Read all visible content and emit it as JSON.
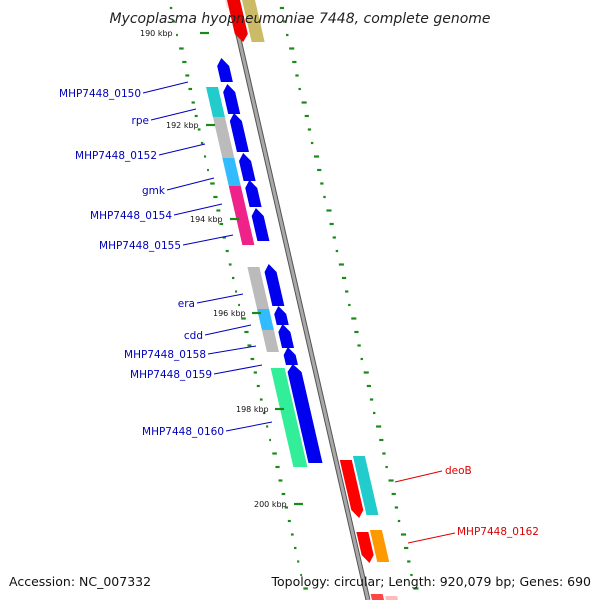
{
  "title": "Mycoplasma hyopneumoniae 7448, complete genome",
  "footer": {
    "accession": "Accession: NC_007332",
    "summary": "Topology: circular; Length: 920,079 bp; Genes: 690"
  },
  "kbp_labels": [
    "190 kbp",
    "192 kbp",
    "194 kbp",
    "196 kbp",
    "198 kbp",
    "200 kbp"
  ],
  "gene_labels_left": [
    "MHP7448_0150",
    "rpe",
    "MHP7448_0152",
    "gmk",
    "MHP7448_0154",
    "MHP7448_0155",
    "era",
    "cdd",
    "MHP7448_0158",
    "MHP7448_0159",
    "MHP7448_0160"
  ],
  "gene_labels_right": [
    "deoB",
    "MHP7448_0162"
  ],
  "colors": {
    "backbone": "#8a8a8a",
    "forward_cds": "#0000ee",
    "reverse_cds": "#ff0000",
    "label_left": "#0000bb",
    "label_right": "#dd0000",
    "gc_ticks": "#1a8a1a",
    "cog_cyan": "#22cccc",
    "cog_grey": "#bbbbbb",
    "cog_lightblue": "#33bbff",
    "cog_pink": "#ee2288",
    "cog_green": "#33ee99",
    "cog_orange": "#ff9900",
    "cog_olive": "#ccbb66"
  }
}
